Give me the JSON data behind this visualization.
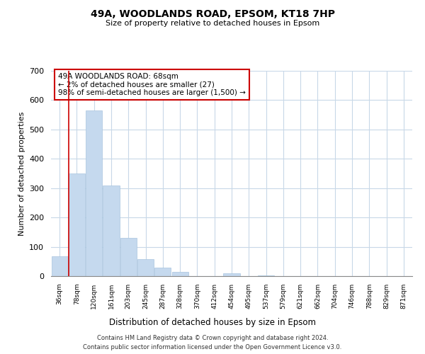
{
  "title": "49A, WOODLANDS ROAD, EPSOM, KT18 7HP",
  "subtitle": "Size of property relative to detached houses in Epsom",
  "xlabel": "Distribution of detached houses by size in Epsom",
  "ylabel": "Number of detached properties",
  "bar_color": "#c5d9ee",
  "bar_edge_color": "#a8c4de",
  "grid_color": "#c8d8e8",
  "background_color": "#ffffff",
  "bin_labels": [
    "36sqm",
    "78sqm",
    "120sqm",
    "161sqm",
    "203sqm",
    "245sqm",
    "287sqm",
    "328sqm",
    "370sqm",
    "412sqm",
    "454sqm",
    "495sqm",
    "537sqm",
    "579sqm",
    "621sqm",
    "662sqm",
    "704sqm",
    "746sqm",
    "788sqm",
    "829sqm",
    "871sqm"
  ],
  "bar_heights": [
    68,
    350,
    565,
    310,
    130,
    58,
    28,
    14,
    0,
    0,
    10,
    0,
    2,
    0,
    0,
    0,
    0,
    0,
    0,
    0,
    0
  ],
  "ylim": [
    0,
    700
  ],
  "yticks": [
    0,
    100,
    200,
    300,
    400,
    500,
    600,
    700
  ],
  "property_line_x": 0.52,
  "annotation_text": "49A WOODLANDS ROAD: 68sqm\n← 2% of detached houses are smaller (27)\n98% of semi-detached houses are larger (1,500) →",
  "annotation_box_color": "#ffffff",
  "annotation_box_edge_color": "#cc0000",
  "vline_color": "#cc0000",
  "footer_line1": "Contains HM Land Registry data © Crown copyright and database right 2024.",
  "footer_line2": "Contains public sector information licensed under the Open Government Licence v3.0."
}
